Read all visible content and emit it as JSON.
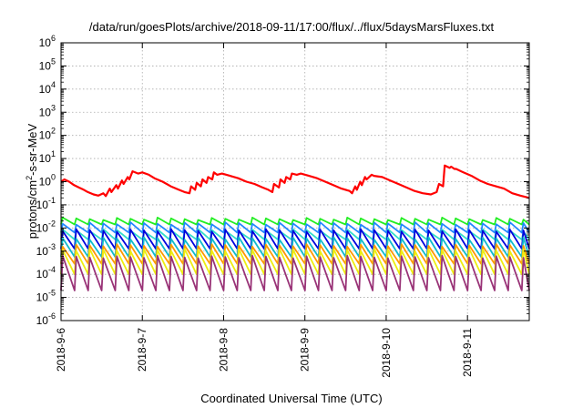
{
  "chart_data": {
    "type": "line",
    "title": "/data/run/goesPlots/archive/2018-09-11/17:00/flux/../flux/5daysMarsFluxes.txt",
    "xlabel": "Coordinated Universal Time (UTC)",
    "ylabel": "protons/cm²-s-sr-MeV",
    "ylabel_parts": {
      "pre": "protons/cm",
      "sup": "2",
      "post": "-s-sr-MeV"
    },
    "yscale": "log",
    "ylim_exp": [
      -6,
      6
    ],
    "y_tick_exponents": [
      -6,
      -5,
      -4,
      -3,
      -2,
      -1,
      0,
      1,
      2,
      3,
      4,
      5,
      6
    ],
    "y_tick_base": "10",
    "x_ticks": [
      "2018-9-6",
      "2018-9-7",
      "2018-9-8",
      "2018-9-9",
      "2018-9-10",
      "2018-9-11"
    ],
    "xlim_days": [
      0,
      5.76
    ],
    "grid": true,
    "legend": false,
    "main_series": {
      "color": "#ff0000",
      "x": [
        0.0,
        0.04,
        0.1,
        0.16,
        0.22,
        0.28,
        0.33,
        0.4,
        0.46,
        0.52,
        0.55,
        0.6,
        0.62,
        0.68,
        0.7,
        0.75,
        0.77,
        0.82,
        0.84,
        0.88,
        0.95,
        1.0,
        1.08,
        1.15,
        1.25,
        1.35,
        1.45,
        1.52,
        1.58,
        1.6,
        1.65,
        1.67,
        1.72,
        1.74,
        1.79,
        1.81,
        1.86,
        1.88,
        1.92,
        1.98,
        2.08,
        2.18,
        2.28,
        2.38,
        2.48,
        2.55,
        2.6,
        2.62,
        2.68,
        2.7,
        2.75,
        2.77,
        2.82,
        2.84,
        2.9,
        2.95,
        3.05,
        3.15,
        3.25,
        3.35,
        3.45,
        3.55,
        3.58,
        3.62,
        3.64,
        3.68,
        3.7,
        3.74,
        3.76,
        3.82,
        3.85,
        3.95,
        4.05,
        4.15,
        4.25,
        4.35,
        4.45,
        4.55,
        4.62,
        4.65,
        4.7,
        4.72,
        4.78,
        4.8,
        4.84,
        4.86,
        4.95,
        5.05,
        5.15,
        5.25,
        5.35,
        5.45,
        5.55,
        5.65,
        5.76
      ],
      "y_exp": [
        0.0,
        0.1,
        0.0,
        -0.15,
        -0.25,
        -0.35,
        -0.45,
        -0.55,
        -0.6,
        -0.5,
        -0.62,
        -0.3,
        -0.45,
        -0.15,
        -0.3,
        0.05,
        -0.1,
        0.2,
        0.1,
        0.45,
        0.35,
        0.4,
        0.3,
        0.15,
        0.0,
        -0.2,
        -0.35,
        -0.45,
        -0.5,
        -0.2,
        -0.35,
        -0.05,
        -0.2,
        0.1,
        -0.05,
        0.2,
        0.1,
        0.4,
        0.3,
        0.35,
        0.25,
        0.15,
        0.0,
        -0.1,
        -0.25,
        -0.35,
        -0.45,
        -0.1,
        -0.25,
        0.1,
        -0.05,
        0.2,
        0.1,
        0.35,
        0.3,
        0.35,
        0.25,
        0.15,
        0.0,
        -0.15,
        -0.3,
        -0.4,
        -0.5,
        -0.2,
        -0.35,
        0.0,
        -0.15,
        0.2,
        0.1,
        0.3,
        0.25,
        0.2,
        0.05,
        -0.1,
        -0.25,
        -0.4,
        -0.5,
        -0.55,
        -0.45,
        -0.1,
        -0.2,
        0.7,
        0.6,
        0.65,
        0.55,
        0.55,
        0.4,
        0.25,
        0.05,
        -0.1,
        -0.2,
        -0.3,
        -0.5,
        -0.6,
        -0.7
      ]
    },
    "periodic_series": [
      {
        "color": "#22ee22",
        "high_exp": -1.55,
        "low_exp": -1.85,
        "period_days": 0.1667
      },
      {
        "color": "#2288ff",
        "high_exp": -1.75,
        "low_exp": -2.2,
        "period_days": 0.1667
      },
      {
        "color": "#33ddcc",
        "high_exp": -2.05,
        "low_exp": -2.5,
        "period_days": 0.1667
      },
      {
        "color": "#0000dd",
        "high_exp": -2.05,
        "low_exp": -2.9,
        "period_days": 0.1667
      },
      {
        "color": "#11bbcc",
        "high_exp": -2.4,
        "low_exp": -3.25,
        "period_days": 0.1667
      },
      {
        "color": "#ff9900",
        "high_exp": -2.7,
        "low_exp": -3.55,
        "period_days": 0.1667
      },
      {
        "color": "#eeee11",
        "high_exp": -2.9,
        "low_exp": -4.0,
        "period_days": 0.1667
      },
      {
        "color": "#993377",
        "high_exp": -3.2,
        "low_exp": -4.7,
        "period_days": 0.1667
      }
    ]
  }
}
